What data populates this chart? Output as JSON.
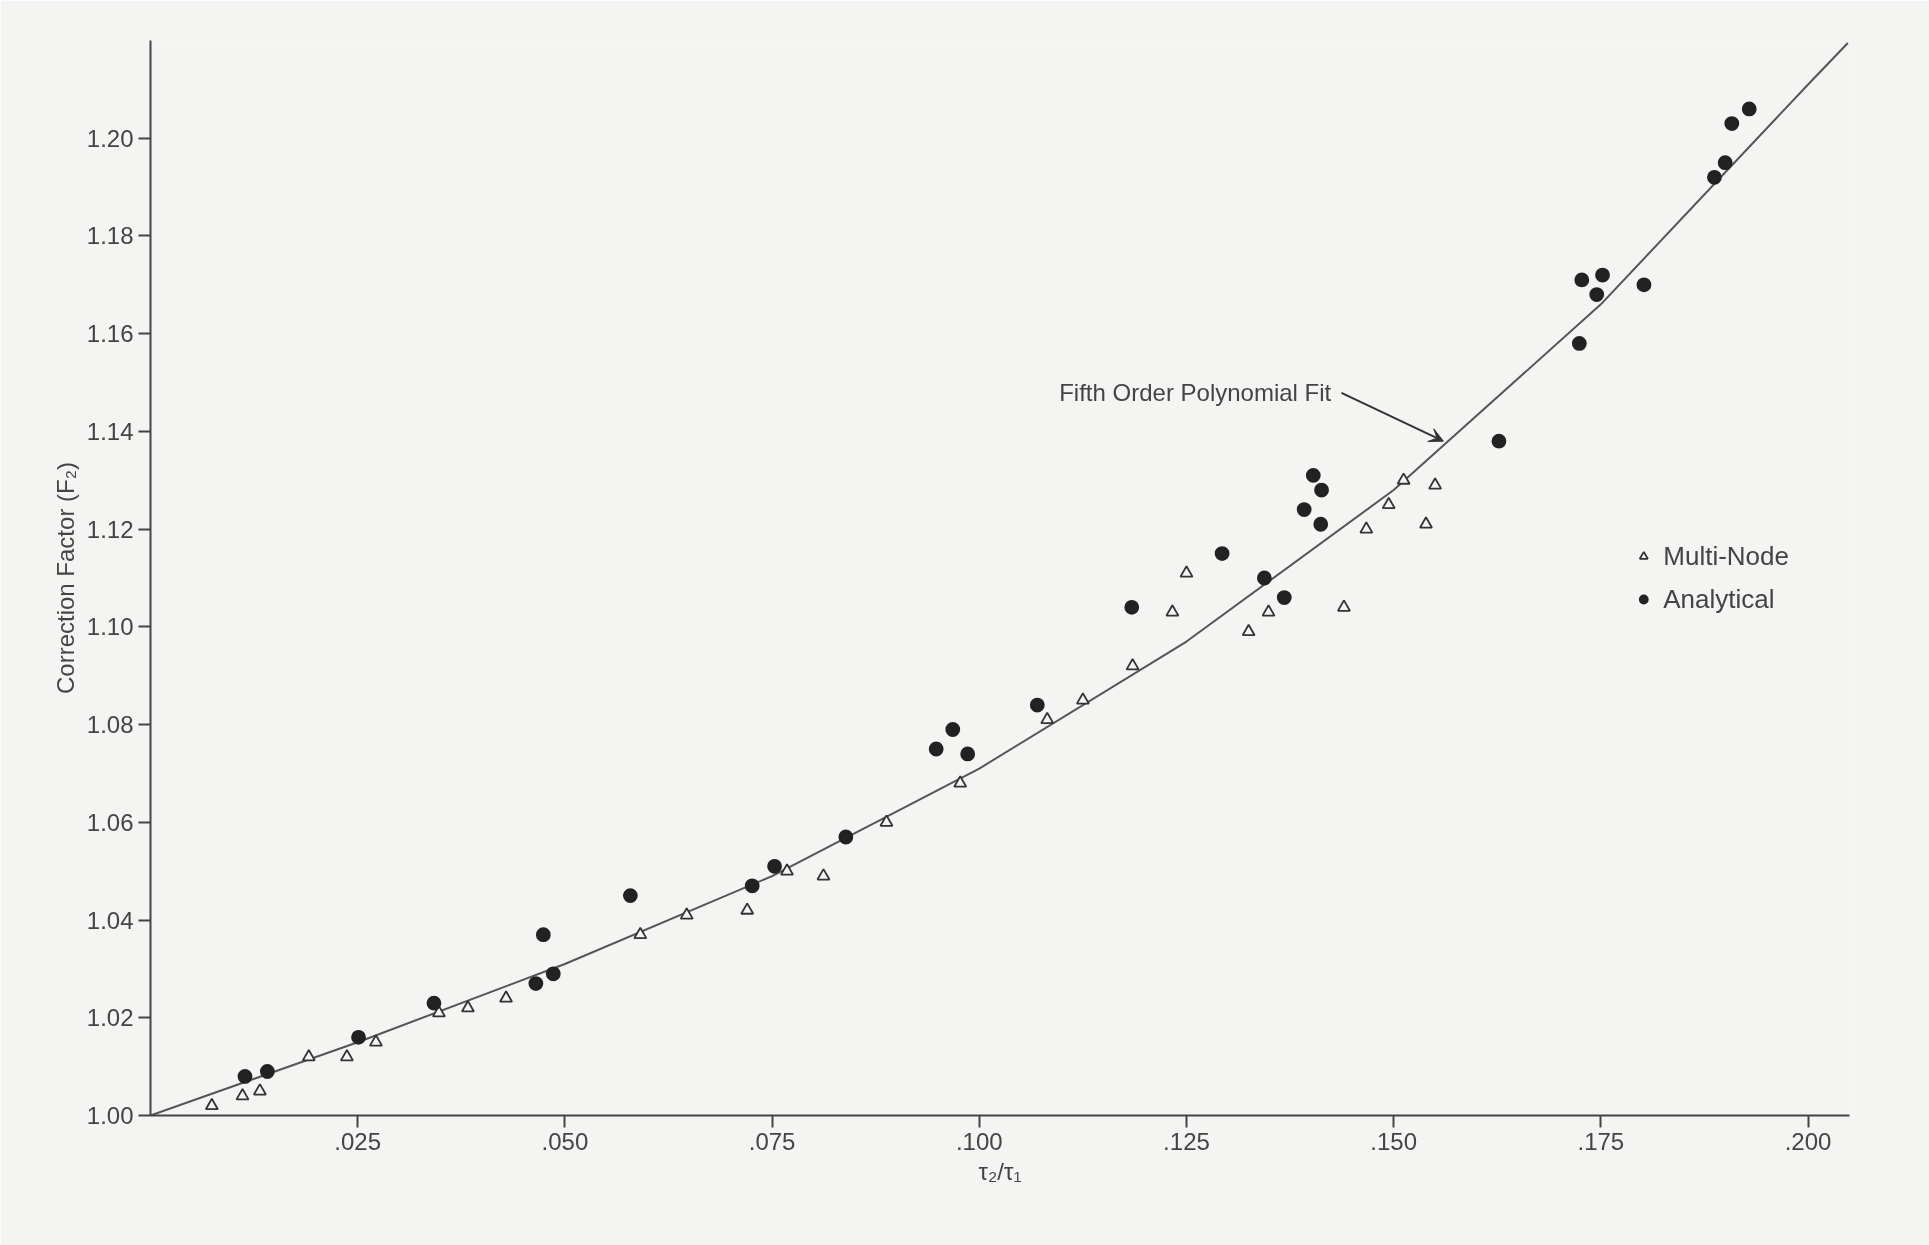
{
  "chart_data": {
    "type": "scatter",
    "xlabel": "τ₂/τ₁",
    "ylabel": "Correction Factor (F₂)",
    "xlim": [
      0,
      0.205
    ],
    "ylim": [
      1.0,
      1.22
    ],
    "xticks": [
      {
        "value": 0.025,
        "label": ".025"
      },
      {
        "value": 0.05,
        "label": ".050"
      },
      {
        "value": 0.075,
        "label": ".075"
      },
      {
        "value": 0.1,
        "label": ".100"
      },
      {
        "value": 0.125,
        "label": ".125"
      },
      {
        "value": 0.15,
        "label": ".150"
      },
      {
        "value": 0.175,
        "label": ".175"
      },
      {
        "value": 0.2,
        "label": ".200"
      }
    ],
    "yticks": [
      {
        "value": 1.0,
        "label": "1.00"
      },
      {
        "value": 1.02,
        "label": "1.02"
      },
      {
        "value": 1.04,
        "label": "1.04"
      },
      {
        "value": 1.06,
        "label": "1.06"
      },
      {
        "value": 1.08,
        "label": "1.08"
      },
      {
        "value": 1.1,
        "label": "1.10"
      },
      {
        "value": 1.12,
        "label": "1.12"
      },
      {
        "value": 1.14,
        "label": "1.14"
      },
      {
        "value": 1.16,
        "label": "1.16"
      },
      {
        "value": 1.18,
        "label": "1.18"
      },
      {
        "value": 1.2,
        "label": "1.20"
      }
    ],
    "grid": false,
    "legend": "right",
    "annotations": [
      {
        "text": "Fifth Order Polynomial Fit",
        "x": 0.156,
        "y": 1.138
      }
    ],
    "series": [
      {
        "name": "Multi-Node",
        "type": "scatter",
        "marker": "triangle",
        "color": "#333333",
        "x": [
          0.0074,
          0.0111,
          0.0132,
          0.0191,
          0.0237,
          0.0272,
          0.0348,
          0.0383,
          0.0429,
          0.0591,
          0.0647,
          0.072,
          0.0768,
          0.0812,
          0.0888,
          0.0977,
          0.1082,
          0.1125,
          0.1185,
          0.1233,
          0.125,
          0.1325,
          0.1349,
          0.144,
          0.1467,
          0.1494,
          0.1512,
          0.1539,
          0.155
        ],
        "values": [
          1.002,
          1.004,
          1.005,
          1.012,
          1.012,
          1.015,
          1.021,
          1.022,
          1.024,
          1.037,
          1.041,
          1.042,
          1.05,
          1.049,
          1.06,
          1.068,
          1.081,
          1.085,
          1.092,
          1.103,
          1.111,
          1.099,
          1.103,
          1.104,
          1.12,
          1.125,
          1.13,
          1.121,
          1.129
        ]
      },
      {
        "name": "Analytical",
        "type": "scatter",
        "marker": "circle",
        "color": "#222222",
        "x": [
          0.0114,
          0.0141,
          0.0251,
          0.0342,
          0.0465,
          0.0474,
          0.0486,
          0.0579,
          0.0726,
          0.0753,
          0.0839,
          0.0948,
          0.0968,
          0.0986,
          0.107,
          0.1184,
          0.1293,
          0.1344,
          0.1368,
          0.1392,
          0.1403,
          0.1413,
          0.1412,
          0.1627,
          0.1724,
          0.1727,
          0.1745,
          0.1752,
          0.1802,
          0.1887,
          0.19,
          0.1908,
          0.1929
        ],
        "values": [
          1.008,
          1.009,
          1.016,
          1.023,
          1.027,
          1.037,
          1.029,
          1.045,
          1.047,
          1.051,
          1.057,
          1.075,
          1.079,
          1.074,
          1.084,
          1.104,
          1.115,
          1.11,
          1.106,
          1.124,
          1.131,
          1.128,
          1.121,
          1.138,
          1.158,
          1.171,
          1.168,
          1.172,
          1.17,
          1.192,
          1.195,
          1.203,
          1.206
        ]
      },
      {
        "type": "line",
        "marker": "none",
        "color": "#555555",
        "x": [
          0,
          0.025,
          0.05,
          0.075,
          0.1,
          0.125,
          0.15,
          0.175,
          0.2,
          0.2048
        ],
        "values": [
          1.0,
          1.015,
          1.031,
          1.049,
          1.071,
          1.097,
          1.128,
          1.166,
          1.211,
          1.2195
        ]
      }
    ]
  }
}
